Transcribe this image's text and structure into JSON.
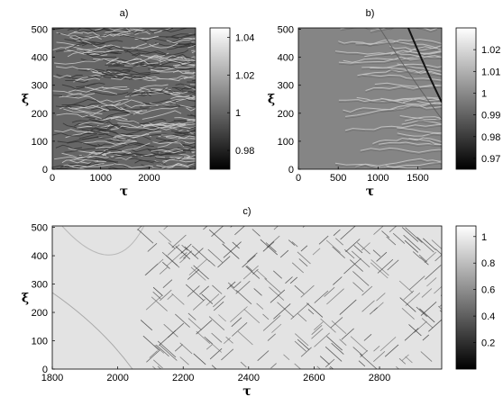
{
  "chart_data": [
    {
      "panel": "a)",
      "type": "heatmap",
      "xlabel": "τ",
      "ylabel": "ξ",
      "xlim": [
        0,
        2960
      ],
      "ylim": [
        0,
        505
      ],
      "xticks": [
        "0",
        "1000",
        "2000"
      ],
      "yticks": [
        "0",
        "100",
        "200",
        "300",
        "400",
        "500"
      ],
      "colorbar": {
        "min": 0.97,
        "max": 1.045,
        "ticks": [
          "0.98",
          "1",
          "1.02",
          "1.04"
        ]
      },
      "background_level": 1.0
    },
    {
      "panel": "b)",
      "type": "heatmap",
      "xlabel": "τ",
      "ylabel": "ξ",
      "xlim": [
        0,
        1800
      ],
      "ylim": [
        0,
        505
      ],
      "xticks": [
        "0",
        "500",
        "1000",
        "1500"
      ],
      "yticks": [
        "0",
        "100",
        "200",
        "300",
        "400",
        "500"
      ],
      "colorbar": {
        "min": 0.965,
        "max": 1.03,
        "ticks": [
          "0.97",
          "0.98",
          "0.99",
          "1",
          "1.01",
          "1.02"
        ]
      },
      "background_level": 0.999,
      "front_onset_tau": 430
    },
    {
      "panel": "c)",
      "type": "heatmap",
      "xlabel": "τ",
      "ylabel": "ξ",
      "xlim": [
        1800,
        2990
      ],
      "ylim": [
        0,
        505
      ],
      "xticks": [
        "1800",
        "2000",
        "2200",
        "2400",
        "2600",
        "2800"
      ],
      "yticks": [
        "0",
        "100",
        "200",
        "300",
        "400",
        "500"
      ],
      "colorbar": {
        "min": 0.0,
        "max": 1.08,
        "ticks": [
          "0.2",
          "0.4",
          "0.6",
          "0.8",
          "1"
        ]
      },
      "background_level": 0.96,
      "front_onset_tau": 2075
    }
  ]
}
